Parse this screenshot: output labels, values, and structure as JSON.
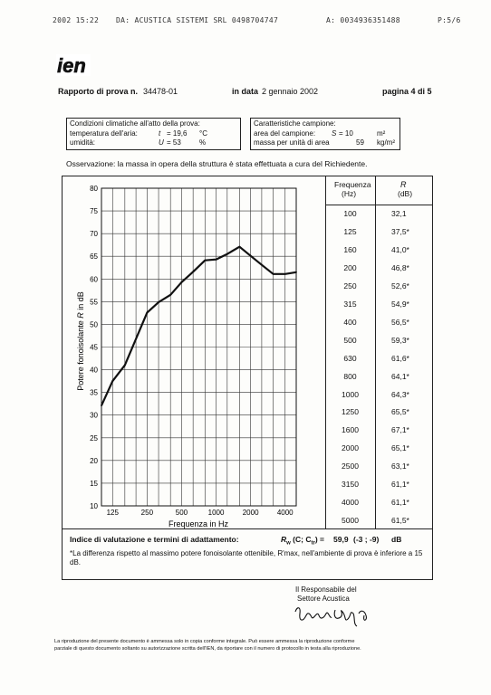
{
  "fax_header": {
    "datetime": "2002 15:22",
    "from": "DA: ACUSTICA SISTEMI SRL 0498704747",
    "to": "A: 0034936351488",
    "page": "P:5/6"
  },
  "logo_text": "ien",
  "report": {
    "number_label": "Rapporto di prova n.",
    "number": "34478-01",
    "date_label": "in data",
    "date": "2 gennaio 2002",
    "page_label": "pagina 4 di 5"
  },
  "climate": {
    "title": "Condizioni climatiche all'atto della prova:",
    "temp_label": "temperatura dell'aria:",
    "temp_sym": "t",
    "temp_value": "= 19,6",
    "temp_unit": "°C",
    "hum_label": "umidità:",
    "hum_sym": "U",
    "hum_value": "=  53",
    "hum_unit": "%"
  },
  "sample": {
    "title": "Caratteristiche campione:",
    "area_label": "area del campione:",
    "area_sym": "S",
    "area_value": "=  10",
    "area_unit": "m²",
    "mass_label": "massa per unità di area",
    "mass_value": "59",
    "mass_unit": "kg/m²"
  },
  "observation": "Osservazione: la massa in opera della struttura è stata effettuata a cura del Richiedente.",
  "table": {
    "col1_header": "Frequenza",
    "col1_unit": "(Hz)",
    "col2_header": "R",
    "col2_unit": "(dB)",
    "rows": [
      {
        "f": "100",
        "r": "32,1"
      },
      {
        "f": "125",
        "r": "37,5*"
      },
      {
        "f": "160",
        "r": "41,0*"
      },
      {
        "f": "200",
        "r": "46,8*"
      },
      {
        "f": "250",
        "r": "52,6*"
      },
      {
        "f": "315",
        "r": "54,9*"
      },
      {
        "f": "400",
        "r": "56,5*"
      },
      {
        "f": "500",
        "r": "59,3*"
      },
      {
        "f": "630",
        "r": "61,6*"
      },
      {
        "f": "800",
        "r": "64,1*"
      },
      {
        "f": "1000",
        "r": "64,3*"
      },
      {
        "f": "1250",
        "r": "65,5*"
      },
      {
        "f": "1600",
        "r": "67,1*"
      },
      {
        "f": "2000",
        "r": "65,1*"
      },
      {
        "f": "2500",
        "r": "63,1*"
      },
      {
        "f": "3150",
        "r": "61,1*"
      },
      {
        "f": "4000",
        "r": "61,1*"
      },
      {
        "f": "5000",
        "r": "61,5*"
      }
    ]
  },
  "chart_data": {
    "type": "line",
    "ylabel_text": "Potere fonoisolante",
    "ylabel_sym": "R",
    "ylabel_unit": "in dB",
    "xlabel": "Frequenza  in Hz",
    "x_tick_labels": [
      "125",
      "250",
      "500",
      "1000",
      "2000",
      "4000"
    ],
    "y_tick_labels": [
      "10",
      "15",
      "20",
      "25",
      "30",
      "35",
      "40",
      "45",
      "50",
      "55",
      "60",
      "65",
      "70",
      "75",
      "80"
    ],
    "ylim": [
      10,
      80
    ],
    "x_scale": "log",
    "grid": true,
    "x": [
      100,
      125,
      160,
      200,
      250,
      315,
      400,
      500,
      630,
      800,
      1000,
      1250,
      1600,
      2000,
      2500,
      3150,
      4000,
      5000
    ],
    "y": [
      32.1,
      37.5,
      41.0,
      46.8,
      52.6,
      54.9,
      56.5,
      59.3,
      61.6,
      64.1,
      64.3,
      65.5,
      67.1,
      65.1,
      63.1,
      61.1,
      61.1,
      61.5
    ]
  },
  "index": {
    "label": "Indice di valutazione e termini di adattamento:",
    "formula": "R",
    "formula_rest": " (C; C",
    "formula_end": ") =",
    "value": "59,9",
    "terms": "(-3 ; -9)",
    "unit": "dB",
    "note": "*La differenza rispetto al massimo potere fonoisolante ottenibile, R'max, nell'ambiente di prova è inferiore a 15 dB."
  },
  "signature": {
    "line1": "Il Responsabile del",
    "line2": "Settore Acustica"
  },
  "footer": {
    "line1": "La riproduzione del presente documento è ammessa solo in copia conforme integrale. Può essere ammessa la riproduzione conforme",
    "line2": "parziale di questo documento soltanto su autorizzazione scritta dell'IEN, da riportare con il numero di protocollo in testa alla riproduzione."
  }
}
